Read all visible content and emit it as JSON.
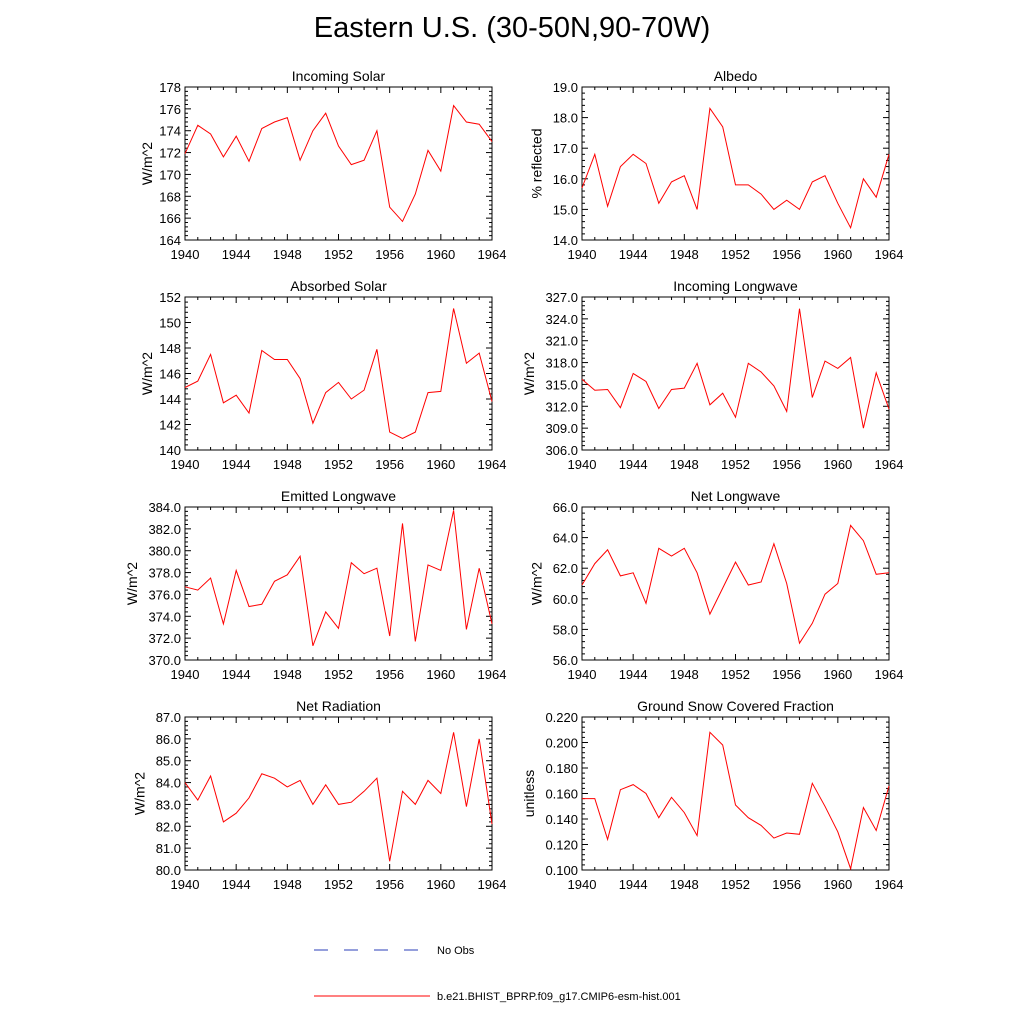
{
  "title": "Eastern U.S. (30-50N,90-70W)",
  "legend": {
    "obs_label": "No Obs",
    "obs_color": "#2b3fb8",
    "model_label": "b.e21.BHIST_BPRP.f09_g17.CMIP6-esm-hist.001",
    "model_color": "#ff0000"
  },
  "chart_data": [
    {
      "type": "line",
      "title": "Incoming Solar",
      "ylabel": "W/m^2",
      "xlabel": "",
      "xlim": [
        1940,
        1964
      ],
      "ylim": [
        164,
        178
      ],
      "yticks": [
        "164",
        "166",
        "168",
        "170",
        "172",
        "174",
        "176",
        "178"
      ],
      "xticks": [
        "1940",
        "1944",
        "1948",
        "1952",
        "1956",
        "1960",
        "1964"
      ],
      "x": [
        1940,
        1941,
        1942,
        1943,
        1944,
        1945,
        1946,
        1947,
        1948,
        1949,
        1950,
        1951,
        1952,
        1953,
        1954,
        1955,
        1956,
        1957,
        1958,
        1959,
        1960,
        1961,
        1962,
        1963,
        1964
      ],
      "values": [
        171.9,
        174.5,
        173.7,
        171.6,
        173.5,
        171.2,
        174.2,
        174.8,
        175.2,
        171.3,
        174.0,
        175.6,
        172.6,
        170.9,
        171.3,
        174.0,
        167.0,
        165.7,
        168.2,
        172.2,
        170.3,
        176.3,
        174.8,
        174.6,
        173.0
      ]
    },
    {
      "type": "line",
      "title": "Albedo",
      "ylabel": "% reflected",
      "xlabel": "",
      "xlim": [
        1940,
        1964
      ],
      "ylim": [
        14.0,
        19.0
      ],
      "yticks": [
        "14.0",
        "15.0",
        "16.0",
        "17.0",
        "18.0",
        "19.0"
      ],
      "xticks": [
        "1940",
        "1944",
        "1948",
        "1952",
        "1956",
        "1960",
        "1964"
      ],
      "x": [
        1940,
        1941,
        1942,
        1943,
        1944,
        1945,
        1946,
        1947,
        1948,
        1949,
        1950,
        1951,
        1952,
        1953,
        1954,
        1955,
        1956,
        1957,
        1958,
        1959,
        1960,
        1961,
        1962,
        1963,
        1964
      ],
      "values": [
        15.7,
        16.8,
        15.1,
        16.4,
        16.8,
        16.5,
        15.2,
        15.9,
        16.1,
        15.0,
        18.3,
        17.7,
        15.8,
        15.8,
        15.5,
        15.0,
        15.3,
        15.0,
        15.9,
        16.1,
        15.2,
        14.4,
        16.0,
        15.4,
        16.8
      ]
    },
    {
      "type": "line",
      "title": "Absorbed Solar",
      "ylabel": "W/m^2",
      "xlabel": "",
      "xlim": [
        1940,
        1964
      ],
      "ylim": [
        140,
        152
      ],
      "yticks": [
        "140",
        "142",
        "144",
        "146",
        "148",
        "150",
        "152"
      ],
      "xticks": [
        "1940",
        "1944",
        "1948",
        "1952",
        "1956",
        "1960",
        "1964"
      ],
      "x": [
        1940,
        1941,
        1942,
        1943,
        1944,
        1945,
        1946,
        1947,
        1948,
        1949,
        1950,
        1951,
        1952,
        1953,
        1954,
        1955,
        1956,
        1957,
        1958,
        1959,
        1960,
        1961,
        1962,
        1963,
        1964
      ],
      "values": [
        144.9,
        145.4,
        147.5,
        143.7,
        144.3,
        142.9,
        147.8,
        147.1,
        147.1,
        145.6,
        142.1,
        144.5,
        145.3,
        144.0,
        144.7,
        147.9,
        141.4,
        140.9,
        141.4,
        144.5,
        144.6,
        151.1,
        146.8,
        147.6,
        143.8
      ]
    },
    {
      "type": "line",
      "title": "Incoming Longwave",
      "ylabel": "W/m^2",
      "xlabel": "",
      "xlim": [
        1940,
        1964
      ],
      "ylim": [
        306.0,
        327.0
      ],
      "yticks": [
        "306.0",
        "309.0",
        "312.0",
        "315.0",
        "318.0",
        "321.0",
        "324.0",
        "327.0"
      ],
      "xticks": [
        "1940",
        "1944",
        "1948",
        "1952",
        "1956",
        "1960",
        "1964"
      ],
      "x": [
        1940,
        1941,
        1942,
        1943,
        1944,
        1945,
        1946,
        1947,
        1948,
        1949,
        1950,
        1951,
        1952,
        1953,
        1954,
        1955,
        1956,
        1957,
        1958,
        1959,
        1960,
        1961,
        1962,
        1963,
        1964
      ],
      "values": [
        315.7,
        314.2,
        314.3,
        311.8,
        316.5,
        315.4,
        311.7,
        314.3,
        314.5,
        317.9,
        312.2,
        313.8,
        310.5,
        317.9,
        316.7,
        314.8,
        311.3,
        325.4,
        313.2,
        318.2,
        317.2,
        318.7,
        309.0,
        316.6,
        311.6
      ]
    },
    {
      "type": "line",
      "title": "Emitted Longwave",
      "ylabel": "W/m^2",
      "xlabel": "",
      "xlim": [
        1940,
        1964
      ],
      "ylim": [
        370.0,
        384.0
      ],
      "yticks": [
        "370.0",
        "372.0",
        "374.0",
        "376.0",
        "378.0",
        "380.0",
        "382.0",
        "384.0"
      ],
      "xticks": [
        "1940",
        "1944",
        "1948",
        "1952",
        "1956",
        "1960",
        "1964"
      ],
      "x": [
        1940,
        1941,
        1942,
        1943,
        1944,
        1945,
        1946,
        1947,
        1948,
        1949,
        1950,
        1951,
        1952,
        1953,
        1954,
        1955,
        1956,
        1957,
        1958,
        1959,
        1960,
        1961,
        1962,
        1963,
        1964
      ],
      "values": [
        376.7,
        376.4,
        377.5,
        373.3,
        378.2,
        374.9,
        375.1,
        377.2,
        377.8,
        379.5,
        371.3,
        374.4,
        372.9,
        378.9,
        377.9,
        378.4,
        372.2,
        382.5,
        371.7,
        378.7,
        378.2,
        383.7,
        372.8,
        378.4,
        373.3
      ]
    },
    {
      "type": "line",
      "title": "Net Longwave",
      "ylabel": "W/m^2",
      "xlabel": "",
      "xlim": [
        1940,
        1964
      ],
      "ylim": [
        56.0,
        66.0
      ],
      "yticks": [
        "56.0",
        "58.0",
        "60.0",
        "62.0",
        "64.0",
        "66.0"
      ],
      "xticks": [
        "1940",
        "1944",
        "1948",
        "1952",
        "1956",
        "1960",
        "1964"
      ],
      "x": [
        1940,
        1941,
        1942,
        1943,
        1944,
        1945,
        1946,
        1947,
        1948,
        1949,
        1950,
        1951,
        1952,
        1953,
        1954,
        1955,
        1956,
        1957,
        1958,
        1959,
        1960,
        1961,
        1962,
        1963,
        1964
      ],
      "values": [
        60.9,
        62.3,
        63.2,
        61.5,
        61.7,
        59.7,
        63.3,
        62.8,
        63.3,
        61.7,
        59.0,
        60.7,
        62.4,
        60.9,
        61.1,
        63.6,
        61.0,
        57.1,
        58.4,
        60.3,
        61.0,
        64.8,
        63.8,
        61.6,
        61.7
      ]
    },
    {
      "type": "line",
      "title": "Net Radiation",
      "ylabel": "W/m^2",
      "xlabel": "",
      "xlim": [
        1940,
        1964
      ],
      "ylim": [
        80.0,
        87.0
      ],
      "yticks": [
        "80.0",
        "81.0",
        "82.0",
        "83.0",
        "84.0",
        "85.0",
        "86.0",
        "87.0"
      ],
      "xticks": [
        "1940",
        "1944",
        "1948",
        "1952",
        "1956",
        "1960",
        "1964"
      ],
      "x": [
        1940,
        1941,
        1942,
        1943,
        1944,
        1945,
        1946,
        1947,
        1948,
        1949,
        1950,
        1951,
        1952,
        1953,
        1954,
        1955,
        1956,
        1957,
        1958,
        1959,
        1960,
        1961,
        1962,
        1963,
        1964
      ],
      "values": [
        84.0,
        83.2,
        84.3,
        82.2,
        82.6,
        83.3,
        84.4,
        84.2,
        83.8,
        84.1,
        83.0,
        83.9,
        83.0,
        83.1,
        83.6,
        84.2,
        80.4,
        83.6,
        83.0,
        84.1,
        83.5,
        86.3,
        82.9,
        86.0,
        82.1
      ]
    },
    {
      "type": "line",
      "title": "Ground Snow Covered Fraction",
      "ylabel": "unitless",
      "xlabel": "",
      "xlim": [
        1940,
        1964
      ],
      "ylim": [
        0.1,
        0.22
      ],
      "yticks": [
        "0.100",
        "0.120",
        "0.140",
        "0.160",
        "0.180",
        "0.200",
        "0.220"
      ],
      "xticks": [
        "1940",
        "1944",
        "1948",
        "1952",
        "1956",
        "1960",
        "1964"
      ],
      "x": [
        1940,
        1941,
        1942,
        1943,
        1944,
        1945,
        1946,
        1947,
        1948,
        1949,
        1950,
        1951,
        1952,
        1953,
        1954,
        1955,
        1956,
        1957,
        1958,
        1959,
        1960,
        1961,
        1962,
        1963,
        1964
      ],
      "values": [
        0.156,
        0.156,
        0.124,
        0.163,
        0.167,
        0.16,
        0.141,
        0.157,
        0.145,
        0.127,
        0.208,
        0.198,
        0.151,
        0.141,
        0.135,
        0.125,
        0.129,
        0.128,
        0.168,
        0.15,
        0.13,
        0.101,
        0.149,
        0.131,
        0.166
      ]
    }
  ]
}
